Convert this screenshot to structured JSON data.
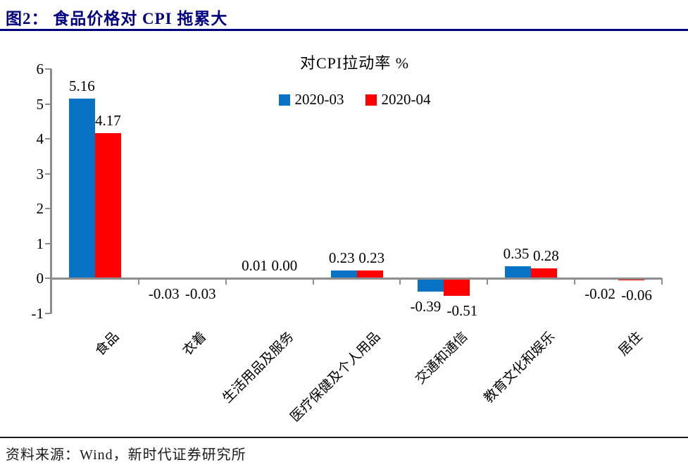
{
  "header": {
    "title": "图2：  食品价格对 CPI 拖累大"
  },
  "chart_data": {
    "type": "bar",
    "title": "对CPI拉动率 %",
    "categories": [
      "食品",
      "衣着",
      "生活用品及服务",
      "医疗保健及个人用品",
      "交通和通信",
      "教育文化和娱乐",
      "居住"
    ],
    "series": [
      {
        "name": "2020-03",
        "color": "#0873C4",
        "values": [
          5.16,
          -0.03,
          0.01,
          0.23,
          -0.39,
          0.35,
          -0.02
        ]
      },
      {
        "name": "2020-04",
        "color": "#FF0000",
        "values": [
          4.17,
          -0.03,
          0.0,
          0.23,
          -0.51,
          0.28,
          -0.06
        ]
      }
    ],
    "ylim": [
      -1,
      6
    ],
    "ytick_step": 1,
    "grid": false,
    "legend_position": "top-center",
    "value_labels": true,
    "value_label_decimals": 2
  },
  "footer": {
    "source": "资料来源：Wind，新时代证券研究所"
  },
  "colors": {
    "accent_navy": "#000080",
    "axis_gray": "#8E8E8E",
    "series_blue": "#0873C4",
    "series_red": "#FF0000",
    "text_black": "#000000"
  }
}
